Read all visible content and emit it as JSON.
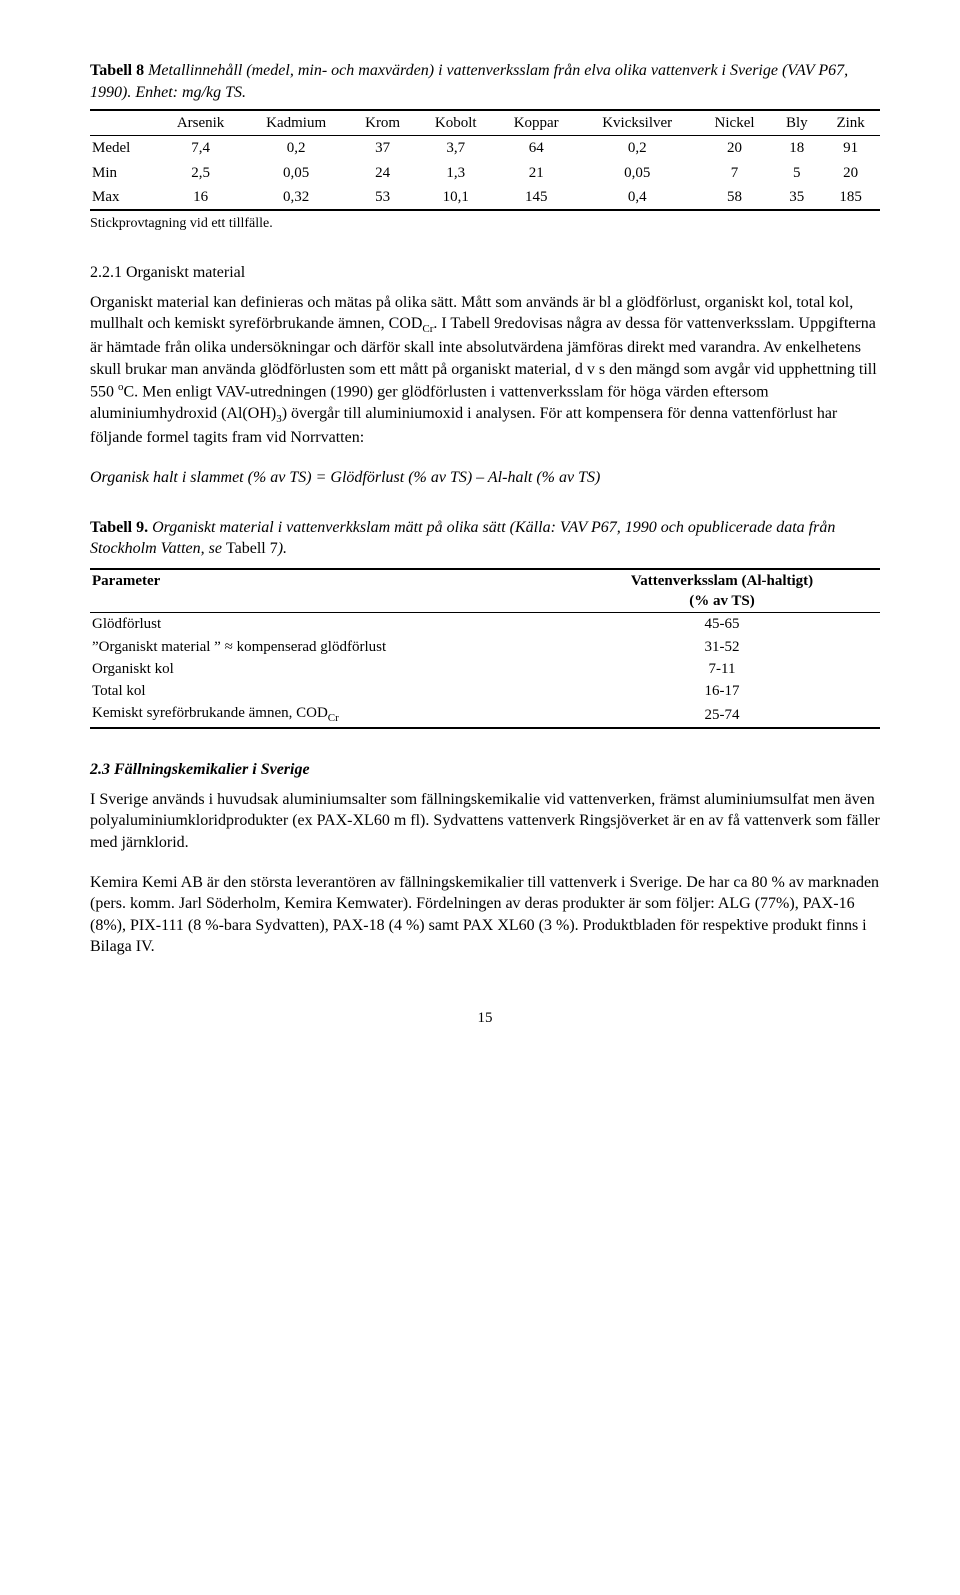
{
  "table8": {
    "caption_label": "Tabell 8",
    "caption_text": " Metallinnehåll (medel, min- och maxvärden) i vattenverksslam från elva olika vattenverk i Sverige (VAV P67, 1990). Enhet: mg/kg TS.",
    "headers": [
      "",
      "Arsenik",
      "Kadmium",
      "Krom",
      "Kobolt",
      "Koppar",
      "Kvicksilver",
      "Nickel",
      "Bly",
      "Zink"
    ],
    "rows": [
      [
        "Medel",
        "7,4",
        "0,2",
        "37",
        "3,7",
        "64",
        "0,2",
        "20",
        "18",
        "91"
      ],
      [
        "Min",
        "2,5",
        "0,05",
        "24",
        "1,3",
        "21",
        "0,05",
        "7",
        "5",
        "20"
      ],
      [
        "Max",
        "16",
        "0,32",
        "53",
        "10,1",
        "145",
        "0,4",
        "58",
        "35",
        "185"
      ]
    ],
    "footnote": "Stickprovtagning vid ett tillfälle."
  },
  "section221": {
    "heading": "2.2.1 Organiskt material",
    "p1_a": "Organiskt material kan definieras och mätas på olika sätt. Mått som används är bl a glödförlust, organiskt kol, total kol, mullhalt och kemiskt syreförbrukande ämnen, COD",
    "p1_sub": "Cr",
    "p1_b": ". I Tabell 9redovisas några av dessa för vattenverksslam. Uppgifterna är hämtade från olika undersökningar och därför skall inte absolutvärdena jämföras direkt med varandra. Av enkelhetens skull brukar man använda glödförlusten som ett mått på organiskt material, d v s den mängd som avgår vid upphettning till 550 ",
    "p1_sup": "o",
    "p1_c": "C. Men enligt VAV-utredningen (1990) ger glödförlusten i vattenverksslam för höga värden eftersom aluminiumhydroxid (Al(OH)",
    "p1_sub2": "3",
    "p1_d": ") övergår till aluminiumoxid i analysen. För att kompensera för denna vattenförlust har följande formel tagits fram vid Norrvatten:",
    "formula": "Organisk halt i slammet (% av TS) = Glödförlust (% av TS) – Al-halt (% av TS)"
  },
  "table9": {
    "caption_label": "Tabell 9.",
    "caption_text_a": " Organiskt material i vattenverkkslam mätt på olika sätt (Källa: VAV P67, 1990 och opublicerade data från Stockholm Vatten, se ",
    "caption_link": "Tabell 7",
    "caption_text_b": ").",
    "head_left": "Parameter",
    "head_right_1": "Vattenverksslam (Al-haltigt)",
    "head_right_2": "(% av TS)",
    "rows": [
      {
        "label": "Glödförlust",
        "value": "45-65",
        "quoted": false
      },
      {
        "label": "Organiskt material ” ≈ kompenserad glödförlust",
        "value": "31-52",
        "quoted": true
      },
      {
        "label": "Organiskt kol",
        "value": "7-11",
        "quoted": false
      },
      {
        "label": "Total kol",
        "value": "16-17",
        "quoted": false
      }
    ],
    "last_row_a": "Kemiskt syreförbrukande ämnen, COD",
    "last_row_sub": "Cr",
    "last_row_val": "25-74"
  },
  "section23": {
    "heading": "2.3 Fällningskemikalier i Sverige",
    "p1": "I Sverige används i huvudsak aluminiumsalter som fällningskemikalie vid vattenverken, främst aluminiumsulfat men även polyaluminiumkloridprodukter (ex PAX-XL60 m fl). Sydvattens vattenverk Ringsjöverket är en av få vattenverk som fäller med järnklorid.",
    "p2": "Kemira Kemi AB är den största leverantören av fällningskemikalier till vattenverk i Sverige. De har ca 80 % av marknaden (pers. komm. Jarl Söderholm, Kemira Kemwater). Fördelningen av deras produkter är som följer: ALG (77%), PAX-16 (8%), PIX-111 (8 %-bara Sydvatten), PAX-18 (4 %) samt PAX XL60 (3 %). Produktbladen för respektive produkt finns i Bilaga IV."
  },
  "page_number": "15"
}
